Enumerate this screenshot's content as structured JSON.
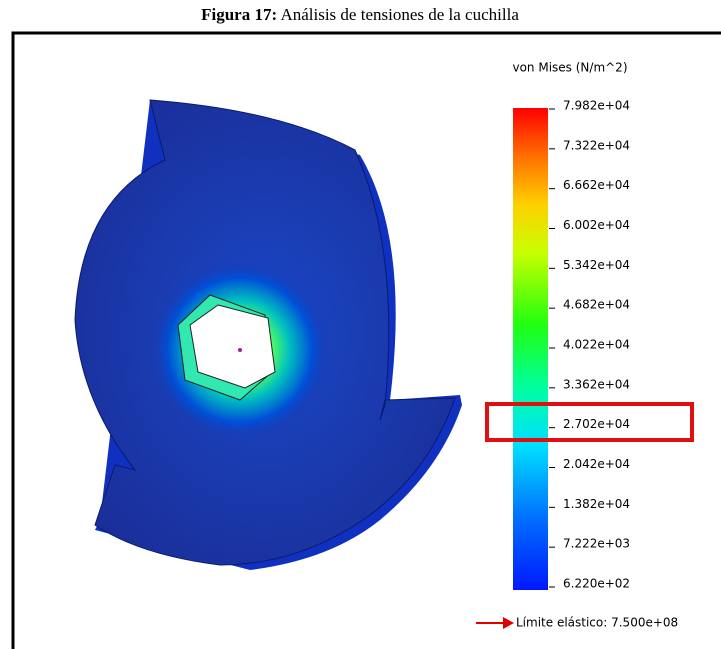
{
  "figure": {
    "caption_label": "Figura 17:",
    "caption_text": "Análisis de tensiones de la cuchilla",
    "legend": {
      "title": "von Mises (N/m^2)",
      "ticks": [
        "7.982e+04",
        "7.322e+04",
        "6.662e+04",
        "6.002e+04",
        "5.342e+04",
        "4.682e+04",
        "4.022e+04",
        "3.362e+04",
        "2.702e+04",
        "2.042e+04",
        "1.382e+04",
        "7.222e+03",
        "6.220e+02"
      ],
      "limit_label": "Límite elástico: 7.500e+08"
    }
  }
}
